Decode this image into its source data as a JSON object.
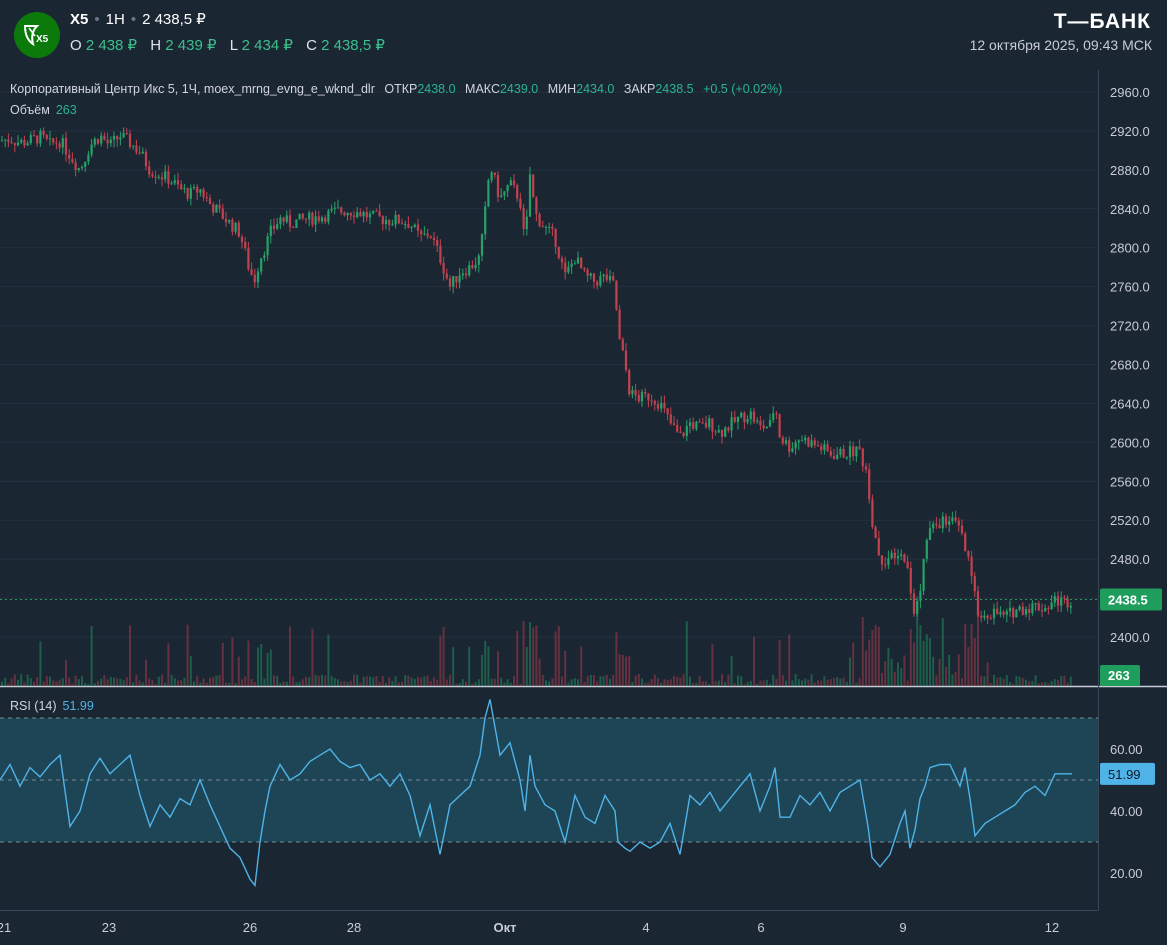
{
  "header": {
    "logo_text": "X5",
    "ticker": "X5",
    "interval": "1H",
    "price": "2 438,5 ₽",
    "ohlc": [
      {
        "label": "O",
        "value": "2 438 ₽"
      },
      {
        "label": "H",
        "value": "2 439 ₽"
      },
      {
        "label": "L",
        "value": "2 434 ₽"
      },
      {
        "label": "C",
        "value": "2 438,5 ₽"
      }
    ],
    "brand": "Т—БАНК",
    "datetime": "12 октября 2025, 09:43 МСК"
  },
  "legend": {
    "title": "Корпоративный Центр Икс 5, 1Ч, moex_mrng_evng_e_wknd_dlr",
    "open_label": "ОТКР",
    "open": "2438.0",
    "high_label": "МАКС",
    "high": "2439.0",
    "low_label": "МИН",
    "low": "2434.0",
    "close_label": "ЗАКР",
    "close": "2438.5",
    "change": "+0.5 (+0.02%)",
    "volume_label": "Объём",
    "volume": "263",
    "rsi_label": "RSI (14)",
    "rsi": "51.99"
  },
  "colors": {
    "background": "#1b2633",
    "up": "#26a269",
    "down": "#c2414f",
    "rsi_line": "#4fb3e8",
    "price_tag": "#1f9d5c",
    "rsi_tag": "#4fb3e8"
  },
  "chart_data": [
    {
      "type": "candlestick",
      "title": "Корпоративный Центр Икс 5, 1Ч",
      "ylim": [
        2380,
        2975
      ],
      "y_ticks": [
        "2960.0",
        "2920.0",
        "2880.0",
        "2840.0",
        "2800.0",
        "2760.0",
        "2720.0",
        "2680.0",
        "2640.0",
        "2600.0",
        "2560.0",
        "2520.0",
        "2480.0",
        "2440.0",
        "2400.0"
      ],
      "x_ticks": [
        "21",
        "23",
        "26",
        "28",
        "Окт",
        "4",
        "6",
        "9",
        "12"
      ],
      "last_price": "2438.5",
      "last_volume": "263",
      "close_path": [
        [
          0,
          2910
        ],
        [
          10,
          2912
        ],
        [
          20,
          2908
        ],
        [
          30,
          2910
        ],
        [
          40,
          2914
        ],
        [
          50,
          2906
        ],
        [
          60,
          2910
        ],
        [
          70,
          2895
        ],
        [
          80,
          2880
        ],
        [
          90,
          2905
        ],
        [
          100,
          2915
        ],
        [
          110,
          2905
        ],
        [
          120,
          2915
        ],
        [
          130,
          2908
        ],
        [
          140,
          2898
        ],
        [
          150,
          2880
        ],
        [
          160,
          2875
        ],
        [
          170,
          2870
        ],
        [
          180,
          2860
        ],
        [
          190,
          2855
        ],
        [
          200,
          2860
        ],
        [
          210,
          2845
        ],
        [
          220,
          2835
        ],
        [
          230,
          2825
        ],
        [
          240,
          2815
        ],
        [
          250,
          2775
        ],
        [
          255,
          2768
        ],
        [
          260,
          2790
        ],
        [
          265,
          2800
        ],
        [
          270,
          2815
        ],
        [
          280,
          2830
        ],
        [
          290,
          2825
        ],
        [
          300,
          2828
        ],
        [
          310,
          2830
        ],
        [
          320,
          2832
        ],
        [
          330,
          2835
        ],
        [
          340,
          2838
        ],
        [
          350,
          2838
        ],
        [
          360,
          2836
        ],
        [
          370,
          2832
        ],
        [
          380,
          2830
        ],
        [
          390,
          2828
        ],
        [
          400,
          2828
        ],
        [
          410,
          2825
        ],
        [
          420,
          2810
        ],
        [
          430,
          2815
        ],
        [
          440,
          2790
        ],
        [
          450,
          2760
        ],
        [
          460,
          2775
        ],
        [
          470,
          2780
        ],
        [
          480,
          2790
        ],
        [
          485,
          2835
        ],
        [
          490,
          2885
        ],
        [
          500,
          2850
        ],
        [
          510,
          2865
        ],
        [
          520,
          2850
        ],
        [
          525,
          2800
        ],
        [
          530,
          2875
        ],
        [
          535,
          2835
        ],
        [
          545,
          2820
        ],
        [
          555,
          2810
        ],
        [
          565,
          2770
        ],
        [
          575,
          2790
        ],
        [
          585,
          2770
        ],
        [
          595,
          2765
        ],
        [
          605,
          2770
        ],
        [
          615,
          2760
        ],
        [
          618,
          2710
        ],
        [
          625,
          2680
        ],
        [
          630,
          2650
        ],
        [
          640,
          2645
        ],
        [
          650,
          2648
        ],
        [
          660,
          2640
        ],
        [
          670,
          2620
        ],
        [
          680,
          2605
        ],
        [
          690,
          2620
        ],
        [
          700,
          2615
        ],
        [
          710,
          2620
        ],
        [
          720,
          2610
        ],
        [
          730,
          2618
        ],
        [
          740,
          2625
        ],
        [
          750,
          2630
        ],
        [
          760,
          2615
        ],
        [
          770,
          2618
        ],
        [
          775,
          2640
        ],
        [
          780,
          2605
        ],
        [
          790,
          2595
        ],
        [
          800,
          2605
        ],
        [
          810,
          2600
        ],
        [
          820,
          2595
        ],
        [
          830,
          2588
        ],
        [
          840,
          2588
        ],
        [
          850,
          2590
        ],
        [
          860,
          2592
        ],
        [
          868,
          2560
        ],
        [
          872,
          2520
        ],
        [
          880,
          2480
        ],
        [
          890,
          2480
        ],
        [
          900,
          2480
        ],
        [
          905,
          2485
        ],
        [
          910,
          2450
        ],
        [
          915,
          2420
        ],
        [
          920,
          2450
        ],
        [
          925,
          2490
        ],
        [
          930,
          2510
        ],
        [
          940,
          2518
        ],
        [
          950,
          2520
        ],
        [
          960,
          2510
        ],
        [
          965,
          2490
        ],
        [
          970,
          2470
        ],
        [
          975,
          2440
        ],
        [
          980,
          2420
        ],
        [
          985,
          2425
        ],
        [
          995,
          2425
        ],
        [
          1005,
          2420
        ],
        [
          1015,
          2428
        ],
        [
          1025,
          2430
        ],
        [
          1035,
          2432
        ],
        [
          1045,
          2430
        ],
        [
          1055,
          2438
        ],
        [
          1065,
          2436
        ],
        [
          1072,
          2438.5
        ]
      ]
    },
    {
      "type": "line",
      "title": "RSI (14)",
      "ylim": [
        15,
        85
      ],
      "y_ticks": [
        "60.00",
        "40.00",
        "20.00"
      ],
      "bands": [
        30,
        70
      ],
      "midline": 50,
      "last_value": "51.99",
      "path": [
        [
          0,
          50
        ],
        [
          10,
          55
        ],
        [
          20,
          48
        ],
        [
          30,
          54
        ],
        [
          40,
          51
        ],
        [
          50,
          55
        ],
        [
          60,
          58
        ],
        [
          70,
          35
        ],
        [
          80,
          40
        ],
        [
          90,
          52
        ],
        [
          100,
          57
        ],
        [
          110,
          52
        ],
        [
          120,
          55
        ],
        [
          130,
          58
        ],
        [
          140,
          45
        ],
        [
          150,
          35
        ],
        [
          160,
          42
        ],
        [
          170,
          38
        ],
        [
          180,
          44
        ],
        [
          190,
          42
        ],
        [
          200,
          50
        ],
        [
          210,
          42
        ],
        [
          220,
          35
        ],
        [
          230,
          28
        ],
        [
          240,
          25
        ],
        [
          250,
          18
        ],
        [
          255,
          16
        ],
        [
          260,
          30
        ],
        [
          265,
          40
        ],
        [
          270,
          48
        ],
        [
          280,
          55
        ],
        [
          290,
          50
        ],
        [
          300,
          52
        ],
        [
          310,
          56
        ],
        [
          320,
          58
        ],
        [
          330,
          60
        ],
        [
          340,
          56
        ],
        [
          350,
          54
        ],
        [
          360,
          55
        ],
        [
          370,
          50
        ],
        [
          380,
          52
        ],
        [
          390,
          48
        ],
        [
          400,
          52
        ],
        [
          410,
          45
        ],
        [
          420,
          32
        ],
        [
          430,
          42
        ],
        [
          440,
          26
        ],
        [
          450,
          42
        ],
        [
          460,
          45
        ],
        [
          470,
          48
        ],
        [
          480,
          58
        ],
        [
          485,
          70
        ],
        [
          490,
          76
        ],
        [
          500,
          58
        ],
        [
          510,
          62
        ],
        [
          520,
          50
        ],
        [
          525,
          40
        ],
        [
          530,
          58
        ],
        [
          535,
          48
        ],
        [
          545,
          42
        ],
        [
          555,
          40
        ],
        [
          565,
          30
        ],
        [
          575,
          45
        ],
        [
          585,
          38
        ],
        [
          595,
          36
        ],
        [
          605,
          45
        ],
        [
          615,
          40
        ],
        [
          618,
          30
        ],
        [
          625,
          28
        ],
        [
          630,
          27
        ],
        [
          640,
          30
        ],
        [
          650,
          28
        ],
        [
          660,
          30
        ],
        [
          670,
          36
        ],
        [
          680,
          26
        ],
        [
          690,
          45
        ],
        [
          700,
          42
        ],
        [
          710,
          46
        ],
        [
          720,
          40
        ],
        [
          730,
          44
        ],
        [
          740,
          48
        ],
        [
          750,
          52
        ],
        [
          760,
          40
        ],
        [
          770,
          48
        ],
        [
          775,
          54
        ],
        [
          780,
          38
        ],
        [
          790,
          38
        ],
        [
          800,
          45
        ],
        [
          810,
          42
        ],
        [
          820,
          46
        ],
        [
          830,
          40
        ],
        [
          840,
          46
        ],
        [
          850,
          48
        ],
        [
          860,
          50
        ],
        [
          868,
          35
        ],
        [
          872,
          25
        ],
        [
          880,
          22
        ],
        [
          890,
          26
        ],
        [
          900,
          36
        ],
        [
          905,
          40
        ],
        [
          910,
          28
        ],
        [
          915,
          34
        ],
        [
          920,
          44
        ],
        [
          925,
          48
        ],
        [
          930,
          54
        ],
        [
          940,
          55
        ],
        [
          950,
          55
        ],
        [
          960,
          48
        ],
        [
          965,
          54
        ],
        [
          970,
          44
        ],
        [
          975,
          32
        ],
        [
          980,
          34
        ],
        [
          985,
          36
        ],
        [
          995,
          38
        ],
        [
          1005,
          40
        ],
        [
          1015,
          42
        ],
        [
          1025,
          46
        ],
        [
          1035,
          48
        ],
        [
          1045,
          45
        ],
        [
          1055,
          52
        ],
        [
          1065,
          52
        ],
        [
          1072,
          51.99
        ]
      ]
    }
  ]
}
